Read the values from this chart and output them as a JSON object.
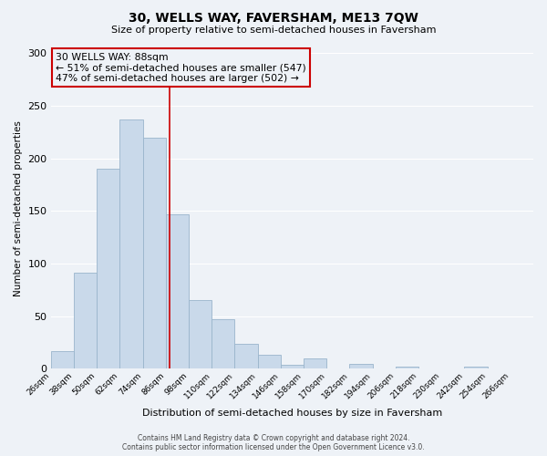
{
  "title": "30, WELLS WAY, FAVERSHAM, ME13 7QW",
  "subtitle": "Size of property relative to semi-detached houses in Faversham",
  "xlabel": "Distribution of semi-detached houses by size in Faversham",
  "ylabel": "Number of semi-detached properties",
  "bin_edges": [
    26,
    38,
    50,
    62,
    74,
    86,
    98,
    110,
    122,
    134,
    146,
    158,
    170,
    182,
    194,
    206,
    218,
    230,
    242,
    254,
    266
  ],
  "counts": [
    17,
    91,
    190,
    237,
    220,
    147,
    65,
    47,
    24,
    13,
    4,
    10,
    0,
    5,
    0,
    2,
    0,
    0,
    2,
    0
  ],
  "bar_color": "#c9d9ea",
  "bar_edge_color": "#9ab5cc",
  "property_value": 88,
  "vline_color": "#cc0000",
  "annotation_line1": "30 WELLS WAY: 88sqm",
  "annotation_line2": "← 51% of semi-detached houses are smaller (547)",
  "annotation_line3": "47% of semi-detached houses are larger (502) →",
  "box_edge_color": "#cc0000",
  "ylim": [
    0,
    305
  ],
  "yticks": [
    0,
    50,
    100,
    150,
    200,
    250,
    300
  ],
  "footer_line1": "Contains HM Land Registry data © Crown copyright and database right 2024.",
  "footer_line2": "Contains public sector information licensed under the Open Government Licence v3.0.",
  "bg_color": "#eef2f7",
  "grid_color": "#ffffff",
  "tick_labels": [
    "26sqm",
    "38sqm",
    "50sqm",
    "62sqm",
    "74sqm",
    "86sqm",
    "98sqm",
    "110sqm",
    "122sqm",
    "134sqm",
    "146sqm",
    "158sqm",
    "170sqm",
    "182sqm",
    "194sqm",
    "206sqm",
    "218sqm",
    "230sqm",
    "242sqm",
    "254sqm",
    "266sqm"
  ]
}
